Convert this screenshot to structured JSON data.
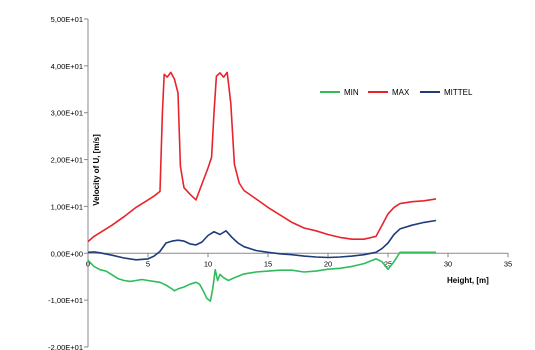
{
  "chart_data": {
    "type": "line",
    "title": "",
    "xlabel": "Height, [m]",
    "ylabel": "Velocity of U, [m/s]",
    "xlim": [
      0,
      35
    ],
    "ylim": [
      -20,
      50
    ],
    "x_ticks": [
      "0",
      "5",
      "10",
      "15",
      "20",
      "25",
      "30",
      "35"
    ],
    "y_ticks": [
      "5,00E+01",
      "4,00E+01",
      "3,00E+01",
      "2,00E+01",
      "1,00E+01",
      "0,00E+00",
      "-1,00E+01",
      "-2,00E+01"
    ],
    "grid": false,
    "legend_position": "top-right",
    "series": [
      {
        "name": "MIN",
        "color": "#2ebd5a",
        "points": [
          [
            0,
            -1.5
          ],
          [
            0.5,
            -2.8
          ],
          [
            1,
            -3.5
          ],
          [
            1.5,
            -3.8
          ],
          [
            2,
            -4.6
          ],
          [
            2.5,
            -5.4
          ],
          [
            3,
            -5.8
          ],
          [
            3.5,
            -6.0
          ],
          [
            4,
            -5.8
          ],
          [
            4.5,
            -5.6
          ],
          [
            5,
            -5.8
          ],
          [
            5.5,
            -6.0
          ],
          [
            6,
            -6.2
          ],
          [
            6.5,
            -6.8
          ],
          [
            7,
            -7.6
          ],
          [
            7.2,
            -8.0
          ],
          [
            7.5,
            -7.6
          ],
          [
            8,
            -7.2
          ],
          [
            8.5,
            -6.6
          ],
          [
            9,
            -6.2
          ],
          [
            9.3,
            -6.6
          ],
          [
            9.6,
            -8.0
          ],
          [
            9.9,
            -9.6
          ],
          [
            10.2,
            -10.2
          ],
          [
            10.4,
            -7.5
          ],
          [
            10.6,
            -3.5
          ],
          [
            10.8,
            -5.8
          ],
          [
            11.0,
            -4.5
          ],
          [
            11.3,
            -5.2
          ],
          [
            11.7,
            -5.8
          ],
          [
            12.2,
            -5.2
          ],
          [
            13,
            -4.4
          ],
          [
            14,
            -4.0
          ],
          [
            15,
            -3.8
          ],
          [
            16,
            -3.6
          ],
          [
            17,
            -3.6
          ],
          [
            18,
            -4.0
          ],
          [
            19,
            -3.8
          ],
          [
            20,
            -3.4
          ],
          [
            21,
            -3.2
          ],
          [
            22,
            -2.8
          ],
          [
            23,
            -2.2
          ],
          [
            24,
            -1.2
          ],
          [
            24.5,
            -1.8
          ],
          [
            25,
            -3.4
          ],
          [
            25.5,
            -1.8
          ],
          [
            26,
            0.2
          ],
          [
            27,
            0.2
          ],
          [
            28,
            0.2
          ],
          [
            29,
            0.2
          ]
        ]
      },
      {
        "name": "MAX",
        "color": "#e8242b",
        "points": [
          [
            0,
            2.5
          ],
          [
            0.5,
            3.6
          ],
          [
            1,
            4.4
          ],
          [
            2,
            6.0
          ],
          [
            3,
            7.8
          ],
          [
            4,
            9.8
          ],
          [
            5,
            11.4
          ],
          [
            5.5,
            12.2
          ],
          [
            6,
            13.2
          ],
          [
            6.2,
            30
          ],
          [
            6.35,
            38.2
          ],
          [
            6.6,
            37.6
          ],
          [
            6.9,
            38.6
          ],
          [
            7.2,
            37.2
          ],
          [
            7.5,
            34.2
          ],
          [
            7.7,
            18.6
          ],
          [
            8,
            14.0
          ],
          [
            8.5,
            12.6
          ],
          [
            9,
            11.4
          ],
          [
            9.5,
            14.8
          ],
          [
            10,
            18.2
          ],
          [
            10.3,
            20.5
          ],
          [
            10.5,
            30
          ],
          [
            10.7,
            37.8
          ],
          [
            11,
            38.5
          ],
          [
            11.3,
            37.6
          ],
          [
            11.6,
            38.6
          ],
          [
            11.9,
            32
          ],
          [
            12.2,
            19.0
          ],
          [
            12.6,
            15.0
          ],
          [
            13,
            13.4
          ],
          [
            14,
            11.6
          ],
          [
            15,
            9.8
          ],
          [
            16,
            8.2
          ],
          [
            17,
            6.6
          ],
          [
            18,
            5.4
          ],
          [
            19,
            4.8
          ],
          [
            20,
            4.0
          ],
          [
            21,
            3.4
          ],
          [
            22,
            3.0
          ],
          [
            23,
            3.0
          ],
          [
            24,
            3.6
          ],
          [
            24.5,
            6.0
          ],
          [
            25,
            8.4
          ],
          [
            25.5,
            9.8
          ],
          [
            26,
            10.6
          ],
          [
            27,
            11.0
          ],
          [
            28,
            11.2
          ],
          [
            29,
            11.6
          ]
        ]
      },
      {
        "name": "MITTEL",
        "color": "#1f3c7a",
        "points": [
          [
            0,
            0.2
          ],
          [
            0.5,
            0.3
          ],
          [
            1,
            0.1
          ],
          [
            2,
            -0.4
          ],
          [
            3,
            -1.0
          ],
          [
            4,
            -1.4
          ],
          [
            5,
            -1.2
          ],
          [
            5.5,
            -0.6
          ],
          [
            6,
            0.4
          ],
          [
            6.5,
            2.2
          ],
          [
            7,
            2.6
          ],
          [
            7.5,
            2.8
          ],
          [
            8,
            2.6
          ],
          [
            8.5,
            2.0
          ],
          [
            9,
            1.8
          ],
          [
            9.5,
            2.4
          ],
          [
            10,
            3.8
          ],
          [
            10.5,
            4.6
          ],
          [
            11,
            4.0
          ],
          [
            11.5,
            4.8
          ],
          [
            12,
            3.4
          ],
          [
            12.5,
            2.2
          ],
          [
            13,
            1.4
          ],
          [
            14,
            0.6
          ],
          [
            15,
            0.2
          ],
          [
            16,
            -0.1
          ],
          [
            17,
            -0.3
          ],
          [
            18,
            -0.6
          ],
          [
            19,
            -0.8
          ],
          [
            20,
            -0.9
          ],
          [
            21,
            -0.8
          ],
          [
            22,
            -0.6
          ],
          [
            23,
            -0.3
          ],
          [
            24,
            0.2
          ],
          [
            24.5,
            1.0
          ],
          [
            25,
            2.2
          ],
          [
            25.5,
            4.0
          ],
          [
            26,
            5.2
          ],
          [
            27,
            6.0
          ],
          [
            28,
            6.6
          ],
          [
            29,
            7.0
          ]
        ]
      }
    ]
  }
}
